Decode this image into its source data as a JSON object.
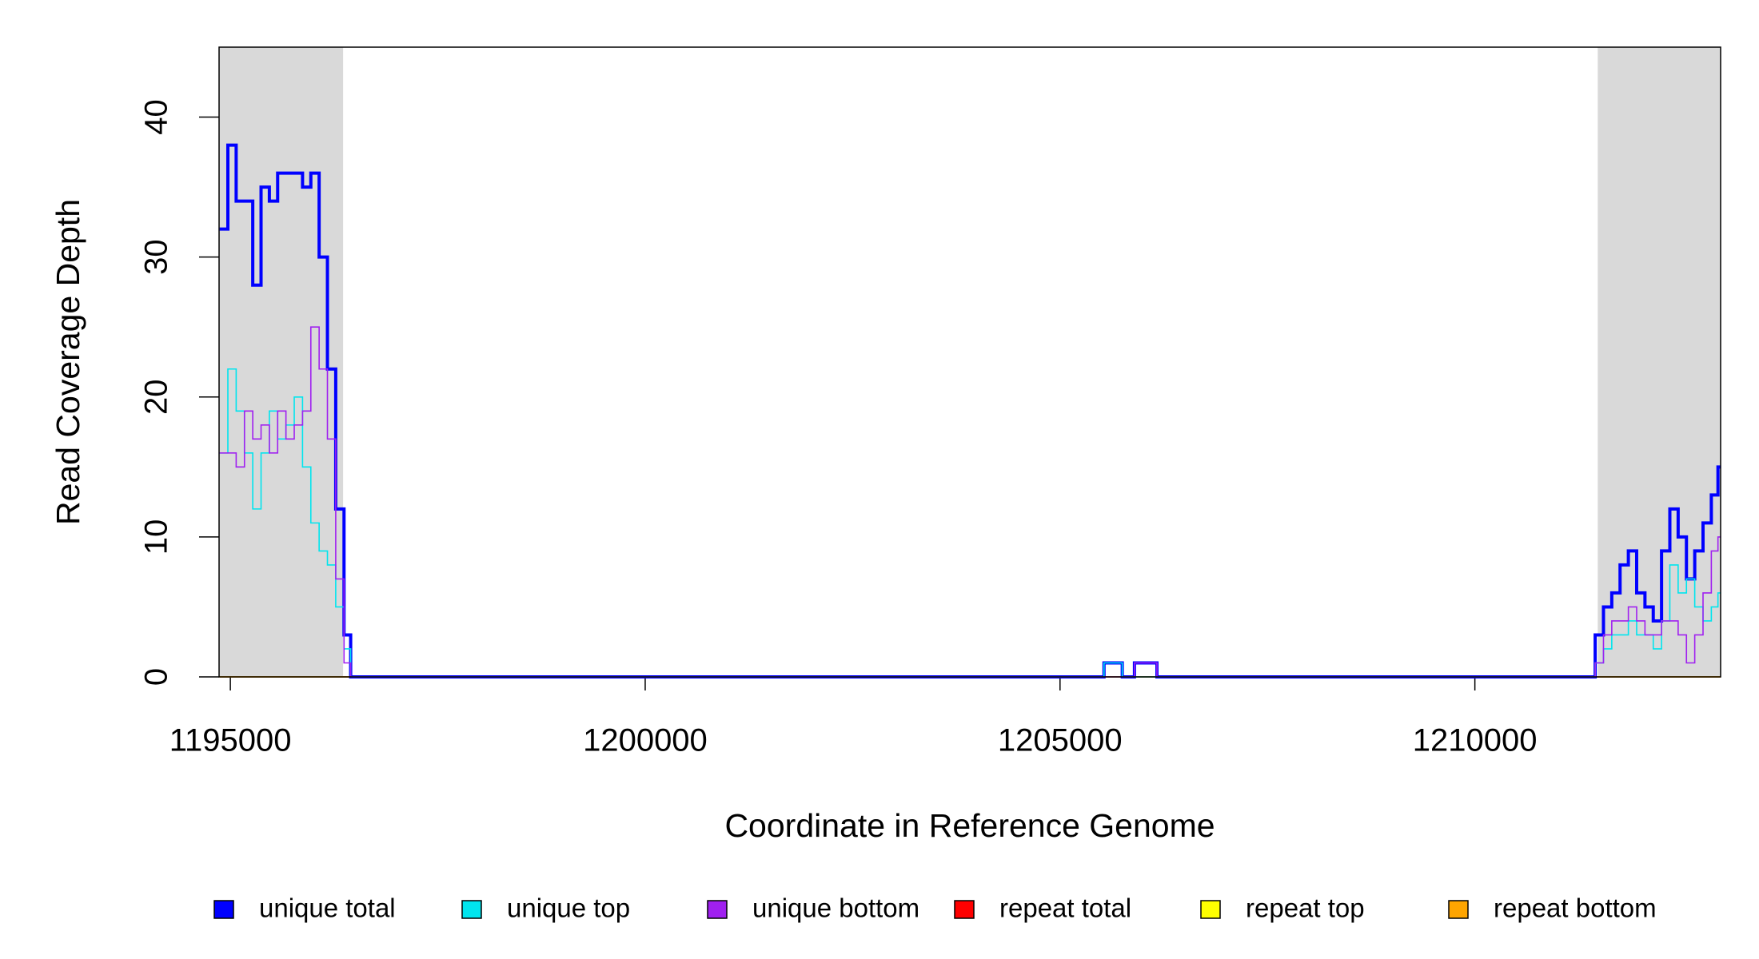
{
  "chart_data": {
    "type": "step",
    "x_label": "Coordinate in Reference Genome",
    "y_label": "Read Coverage Depth",
    "xlim": [
      1194864,
      1212962
    ],
    "ylim": [
      0,
      45
    ],
    "xticks": [
      1195000,
      1200000,
      1205000,
      1210000
    ],
    "yticks": [
      0,
      10,
      20,
      30,
      40
    ],
    "shaded_regions": [
      [
        1194864,
        1196359
      ],
      [
        1211481,
        1212962
      ]
    ],
    "shade_color": "#d9d9d9",
    "x": [
      1194870,
      1194970,
      1195070,
      1195170,
      1195270,
      1195370,
      1195470,
      1195570,
      1195670,
      1195770,
      1195870,
      1195970,
      1196070,
      1196170,
      1196270,
      1196370,
      1196450,
      1205530,
      1205750,
      1205897,
      1206168,
      1211400,
      1211450,
      1211550,
      1211650,
      1211750,
      1211850,
      1211950,
      1212050,
      1212150,
      1212250,
      1212350,
      1212450,
      1212550,
      1212650,
      1212750,
      1212850,
      1212930
    ],
    "series": [
      {
        "name": "repeat total",
        "color": "#ff0000",
        "values": [
          0,
          0,
          0,
          0,
          0,
          0,
          0,
          0,
          0,
          0,
          0,
          0,
          0,
          0,
          0,
          0,
          0,
          0,
          0,
          0,
          0,
          0,
          0,
          0,
          0,
          0,
          0,
          0,
          0,
          0,
          0,
          0,
          0,
          0,
          0,
          0,
          0,
          0
        ]
      },
      {
        "name": "repeat top",
        "color": "#ffff00",
        "values": [
          0,
          0,
          0,
          0,
          0,
          0,
          0,
          0,
          0,
          0,
          0,
          0,
          0,
          0,
          0,
          0,
          0,
          0,
          0,
          0,
          0,
          0,
          0,
          0,
          0,
          0,
          0,
          0,
          0,
          0,
          0,
          0,
          0,
          0,
          0,
          0,
          0,
          0
        ]
      },
      {
        "name": "repeat bottom",
        "color": "#ffa500",
        "values": [
          0,
          0,
          0,
          0,
          0,
          0,
          0,
          0,
          0,
          0,
          0,
          0,
          0,
          0,
          0,
          0,
          0,
          0,
          0,
          0,
          0,
          0,
          0,
          0,
          0,
          0,
          0,
          0,
          0,
          0,
          0,
          0,
          0,
          0,
          0,
          0,
          0,
          0
        ]
      },
      {
        "name": "unique total",
        "color": "#0000ff",
        "values": [
          32,
          38,
          34,
          34,
          28,
          35,
          34,
          36,
          36,
          36,
          35,
          36,
          30,
          22,
          12,
          3,
          0,
          1,
          0,
          1,
          0,
          0,
          3,
          5,
          6,
          8,
          9,
          6,
          5,
          4,
          9,
          12,
          10,
          7,
          9,
          11,
          13,
          15
        ]
      },
      {
        "name": "unique top",
        "color": "#00e5ee",
        "values": [
          16,
          22,
          19,
          16,
          12,
          16,
          19,
          17,
          18,
          20,
          15,
          11,
          9,
          8,
          5,
          2,
          0,
          1,
          0,
          0,
          0,
          0,
          1,
          2,
          3,
          3,
          4,
          3,
          3,
          2,
          4,
          8,
          6,
          7,
          5,
          4,
          5,
          6
        ]
      },
      {
        "name": "unique bottom",
        "color": "#a020f0",
        "values": [
          16,
          16,
          15,
          19,
          17,
          18,
          16,
          19,
          17,
          18,
          19,
          25,
          22,
          17,
          7,
          1,
          0,
          0,
          0,
          1,
          0,
          0,
          1,
          3,
          4,
          4,
          5,
          4,
          3,
          3,
          4,
          4,
          3,
          1,
          3,
          6,
          9,
          10
        ]
      }
    ],
    "legend_order": [
      3,
      4,
      5,
      0,
      1,
      2
    ]
  }
}
